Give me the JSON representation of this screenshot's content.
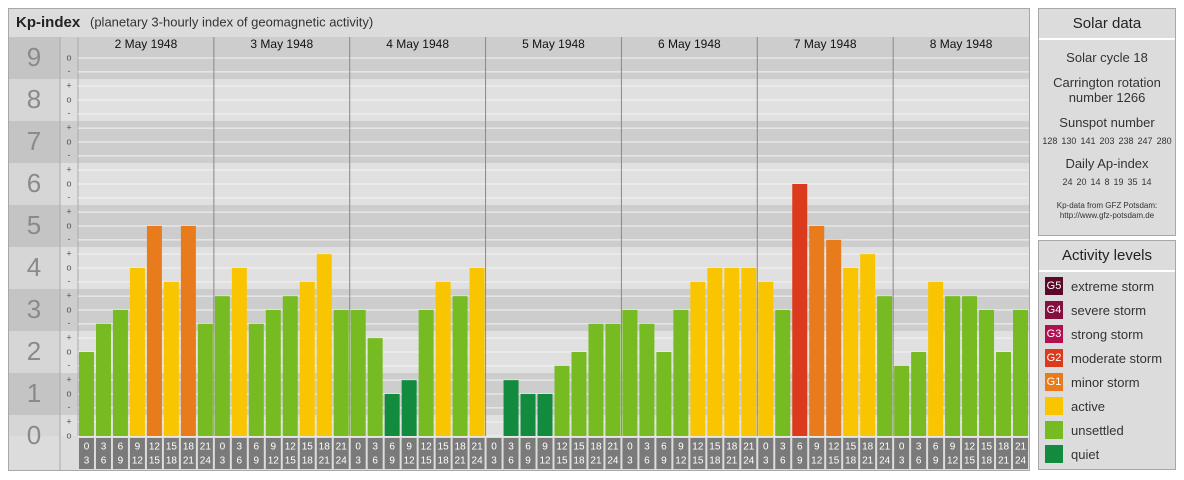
{
  "chart_data": {
    "type": "bar",
    "title": "Kp-index",
    "subtitle": "(planetary 3-hourly index of geomagnetic activity)",
    "ylim": [
      0,
      9.5
    ],
    "yticks": [
      0,
      1,
      2,
      3,
      4,
      5,
      6,
      7,
      8,
      9
    ],
    "minor_yticks": [
      {
        "value": 0,
        "label": "o"
      },
      {
        "value": 0.33,
        "label": "+"
      },
      {
        "value": 0.67,
        "label": "-"
      },
      {
        "value": 1,
        "label": "o"
      },
      {
        "value": 1.33,
        "label": "+"
      },
      {
        "value": 1.67,
        "label": "-"
      },
      {
        "value": 2,
        "label": "o"
      },
      {
        "value": 2.33,
        "label": "+"
      },
      {
        "value": 2.67,
        "label": "-"
      },
      {
        "value": 3,
        "label": "o"
      },
      {
        "value": 3.33,
        "label": "+"
      },
      {
        "value": 3.67,
        "label": "-"
      },
      {
        "value": 4,
        "label": "o"
      },
      {
        "value": 4.33,
        "label": "+"
      },
      {
        "value": 4.67,
        "label": "-"
      },
      {
        "value": 5,
        "label": "o"
      },
      {
        "value": 5.33,
        "label": "+"
      },
      {
        "value": 5.67,
        "label": "-"
      },
      {
        "value": 6,
        "label": "o"
      },
      {
        "value": 6.33,
        "label": "+"
      },
      {
        "value": 6.67,
        "label": "-"
      },
      {
        "value": 7,
        "label": "o"
      },
      {
        "value": 7.33,
        "label": "+"
      },
      {
        "value": 7.67,
        "label": "-"
      },
      {
        "value": 8,
        "label": "o"
      },
      {
        "value": 8.33,
        "label": "+"
      },
      {
        "value": 8.67,
        "label": "-"
      },
      {
        "value": 9,
        "label": "o"
      }
    ],
    "grid": true,
    "hours": [
      "0",
      "3",
      "6",
      "9",
      "12",
      "15",
      "18",
      "21",
      "24"
    ],
    "days": [
      {
        "date": "2 May 1948",
        "values": [
          2,
          2.67,
          3,
          4,
          5,
          3.67,
          5,
          2.67
        ],
        "colors": [
          "#77bb22",
          "#77bb22",
          "#77bb22",
          "#f9c500",
          "#e87b1c",
          "#f9c500",
          "#e87b1c",
          "#77bb22"
        ]
      },
      {
        "date": "3 May 1948",
        "values": [
          3.33,
          4,
          2.67,
          3,
          3.33,
          3.67,
          4.33,
          3
        ],
        "colors": [
          "#77bb22",
          "#f9c500",
          "#77bb22",
          "#77bb22",
          "#77bb22",
          "#f9c500",
          "#f9c500",
          "#77bb22"
        ]
      },
      {
        "date": "4 May 1948",
        "values": [
          3,
          2.33,
          1,
          1.33,
          3,
          3.67,
          3.33,
          4
        ],
        "colors": [
          "#77bb22",
          "#77bb22",
          "#128b3f",
          "#128b3f",
          "#77bb22",
          "#f9c500",
          "#77bb22",
          "#f9c500"
        ]
      },
      {
        "date": "5 May 1948",
        "values": [
          0,
          1.33,
          1,
          1,
          1.67,
          2,
          2.67,
          2.67
        ],
        "colors": [
          "#128b3f",
          "#128b3f",
          "#128b3f",
          "#128b3f",
          "#77bb22",
          "#77bb22",
          "#77bb22",
          "#77bb22"
        ]
      },
      {
        "date": "6 May 1948",
        "values": [
          3,
          2.67,
          2,
          3,
          3.67,
          4,
          4,
          4
        ],
        "colors": [
          "#77bb22",
          "#77bb22",
          "#77bb22",
          "#77bb22",
          "#f9c500",
          "#f9c500",
          "#f9c500",
          "#f9c500"
        ]
      },
      {
        "date": "7 May 1948",
        "values": [
          3.67,
          3,
          6,
          5,
          4.67,
          4,
          4.33,
          3.33
        ],
        "colors": [
          "#f9c500",
          "#77bb22",
          "#dc3a1c",
          "#e87b1c",
          "#e87b1c",
          "#f9c500",
          "#f9c500",
          "#77bb22"
        ]
      },
      {
        "date": "8 May 1948",
        "values": [
          1.67,
          2,
          3.67,
          3.33,
          3.33,
          3,
          2,
          3
        ],
        "colors": [
          "#77bb22",
          "#77bb22",
          "#f9c500",
          "#77bb22",
          "#77bb22",
          "#77bb22",
          "#77bb22",
          "#77bb22"
        ]
      }
    ]
  },
  "solar_data": {
    "title": "Solar data",
    "cycle": "Solar cycle 18",
    "carrington": "Carrington rotation number 1266",
    "sunspot_title": "Sunspot number",
    "sunspot": [
      128,
      130,
      141,
      203,
      238,
      247,
      280
    ],
    "ap_title": "Daily Ap-index",
    "ap": [
      24,
      20,
      14,
      8,
      19,
      35,
      14
    ],
    "source": "Kp-data from GFZ Potsdam:",
    "url": "http://www.gfz-potsdam.de"
  },
  "activity_levels": {
    "title": "Activity levels",
    "levels": [
      {
        "code": "G5",
        "name": "extreme storm",
        "color": "#5a0a28"
      },
      {
        "code": "G4",
        "name": "severe storm",
        "color": "#85103f"
      },
      {
        "code": "G3",
        "name": "strong storm",
        "color": "#b0104f"
      },
      {
        "code": "G2",
        "name": "moderate storm",
        "color": "#dc3a1c"
      },
      {
        "code": "G1",
        "name": "minor storm",
        "color": "#e87b1c"
      },
      {
        "name": "active",
        "color": "#f9c500"
      },
      {
        "name": "unsettled",
        "color": "#77bb22"
      },
      {
        "name": "quiet",
        "color": "#128b3f"
      }
    ]
  }
}
